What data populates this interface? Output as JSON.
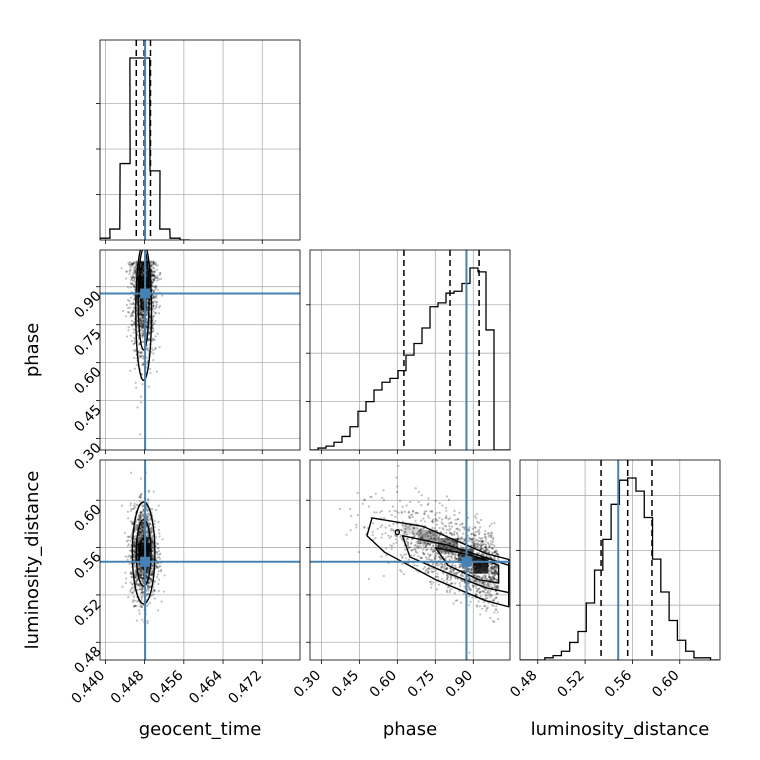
{
  "chart_data": {
    "type": "corner",
    "parameters": [
      "geocent_time",
      "phase",
      "luminosity_distance"
    ],
    "truths": {
      "geocent_time": 0.4481,
      "phase": 0.873,
      "luminosity_distance": 0.548
    },
    "quantiles": {
      "geocent_time": [
        0.4463,
        0.4479,
        0.4492
      ],
      "phase": [
        0.626,
        0.808,
        0.923
      ],
      "luminosity_distance": [
        0.5335,
        0.556,
        0.5765
      ]
    },
    "ranges": {
      "geocent_time": [
        0.4389,
        0.4797
      ],
      "phase": [
        0.255,
        1.045
      ],
      "luminosity_distance": [
        0.465,
        0.634
      ]
    },
    "ticks": {
      "geocent_time": [
        "0.440",
        "0.448",
        "0.456",
        "0.464",
        "0.472"
      ],
      "phase": [
        "0.30",
        "0.45",
        "0.60",
        "0.75",
        "0.90"
      ],
      "luminosity_distance": [
        "0.48",
        "0.52",
        "0.56",
        "0.60"
      ]
    },
    "histograms": {
      "geocent_time": {
        "bins_left": [
          0.4389,
          0.4409,
          0.443,
          0.445,
          0.447,
          0.4491,
          0.4511,
          0.4532,
          0.4552
        ],
        "bin_width": 0.00204,
        "counts": [
          10,
          60,
          420,
          1000,
          1000,
          380,
          60,
          10,
          0
        ]
      },
      "phase": {
        "bins_left": [
          0.255,
          0.2866,
          0.3182,
          0.3498,
          0.3814,
          0.413,
          0.4446,
          0.4762,
          0.5078,
          0.5394,
          0.571,
          0.6026,
          0.6342,
          0.6658,
          0.6974,
          0.729,
          0.7606,
          0.7922,
          0.8238,
          0.8554,
          0.887,
          0.9186,
          0.9502,
          0.9818,
          1.0134
        ],
        "bin_width": 0.0316,
        "counts": [
          0,
          10,
          20,
          40,
          70,
          120,
          200,
          250,
          310,
          350,
          370,
          410,
          490,
          550,
          630,
          740,
          760,
          810,
          820,
          860,
          940,
          920,
          620,
          0,
          0
        ]
      },
      "luminosity_distance": {
        "bins_left": [
          0.465,
          0.472,
          0.479,
          0.486,
          0.493,
          0.5,
          0.507,
          0.514,
          0.521,
          0.528,
          0.535,
          0.542,
          0.549,
          0.556,
          0.563,
          0.57,
          0.577,
          0.584,
          0.591,
          0.598,
          0.605,
          0.612,
          0.619,
          0.626
        ],
        "bin_width": 0.007,
        "counts": [
          0,
          0,
          0,
          10,
          20,
          40,
          80,
          130,
          260,
          410,
          550,
          710,
          820,
          830,
          770,
          650,
          460,
          310,
          180,
          90,
          40,
          10,
          10,
          0
        ]
      }
    },
    "contours": {
      "phase_vs_geocent_time": [
        {
          "center": [
            0.4478,
            0.8
          ],
          "half": [
            0.0016,
            0.27
          ]
        },
        {
          "center": [
            0.4478,
            0.85
          ],
          "half": [
            0.0011,
            0.2
          ]
        },
        {
          "center": [
            0.4477,
            0.9
          ],
          "half": [
            0.0006,
            0.09
          ]
        }
      ],
      "luminosity_distance_vs_geocent_time": [
        {
          "center": [
            0.4478,
            0.5555
          ],
          "half": [
            0.0023,
            0.043
          ]
        },
        {
          "center": [
            0.4478,
            0.5555
          ],
          "half": [
            0.0015,
            0.028
          ]
        },
        {
          "center": [
            0.4478,
            0.556
          ],
          "half": [
            0.0008,
            0.012
          ]
        }
      ]
    }
  }
}
